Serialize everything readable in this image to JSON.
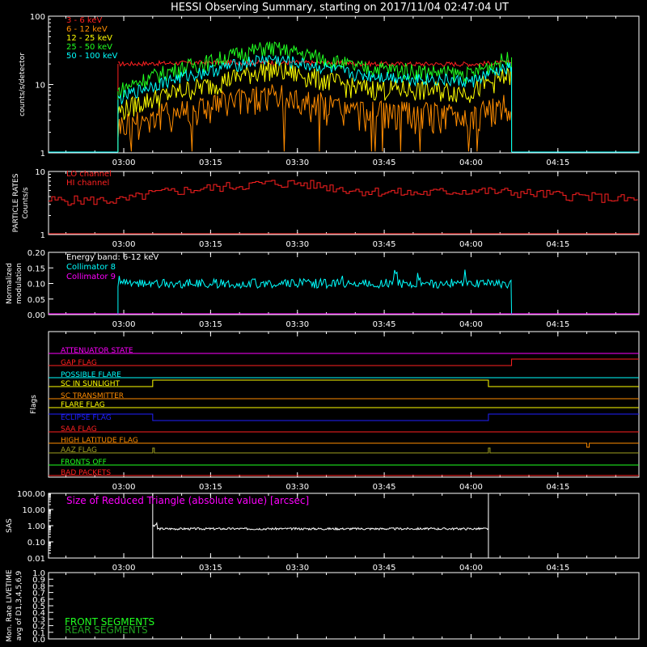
{
  "title": "HESSI Observing Summary, starting on 2017/11/04 02:47:04 UT",
  "time_ticks": [
    "03:00",
    "03:15",
    "03:30",
    "03:45",
    "04:00",
    "04:15"
  ],
  "colors": {
    "red": "#ff2020",
    "orange": "#ff8c00",
    "yellow": "#ffff00",
    "green": "#20ff20",
    "cyan": "#00ffff",
    "magenta": "#ff00ff",
    "white": "#ffffff",
    "blue": "#2020ff",
    "olive": "#a0a020",
    "dkgreen": "#20a020"
  },
  "chart_data": [
    {
      "type": "line",
      "id": "counts",
      "ylabel": "counts/s/detector",
      "ylim": [
        1,
        100
      ],
      "yscale": "log",
      "yticks": [
        "1",
        "10",
        "100"
      ],
      "data_window": [
        "02:59",
        "04:07"
      ],
      "series": [
        {
          "name": "3 - 6 keV",
          "color": "red",
          "time": [
            "02:59",
            "03:15",
            "03:30",
            "03:45",
            "04:00",
            "04:07"
          ],
          "values": [
            20,
            21,
            21,
            20,
            20,
            21
          ]
        },
        {
          "name": "6 - 12 keV",
          "color": "orange",
          "time": [
            "02:59",
            "03:15",
            "03:25",
            "03:40",
            "04:00",
            "04:07"
          ],
          "values": [
            2.5,
            5,
            7,
            4,
            3.5,
            5
          ]
        },
        {
          "name": "12 - 25 keV",
          "color": "yellow",
          "time": [
            "02:59",
            "03:15",
            "03:25",
            "03:40",
            "04:00",
            "04:07"
          ],
          "values": [
            4,
            10,
            17,
            9,
            8,
            14
          ]
        },
        {
          "name": "25 - 50 keV",
          "color": "green",
          "time": [
            "02:59",
            "03:15",
            "03:25",
            "03:40",
            "04:00",
            "04:07"
          ],
          "values": [
            8,
            22,
            35,
            18,
            14,
            25
          ]
        },
        {
          "name": "50 - 100 keV",
          "color": "cyan",
          "time": [
            "02:59",
            "03:15",
            "03:25",
            "03:40",
            "04:00",
            "04:07"
          ],
          "values": [
            6,
            16,
            24,
            14,
            11,
            18
          ]
        }
      ]
    },
    {
      "type": "line",
      "id": "particle",
      "ylabel": [
        "PARTICLE RATES",
        "Counts/s"
      ],
      "ylim": [
        1,
        10
      ],
      "yscale": "log",
      "yticks": [
        "1",
        "10"
      ],
      "series": [
        {
          "name": "LO channel",
          "color": "red",
          "time": [
            "02:47",
            "03:00",
            "03:05",
            "03:15",
            "03:25",
            "03:30",
            "03:40",
            "03:50",
            "04:00",
            "04:10",
            "04:20",
            "04:29"
          ],
          "values": [
            3.5,
            3.5,
            4.5,
            5.5,
            6.5,
            6.5,
            5,
            4.5,
            5,
            4.5,
            4,
            3.5
          ]
        },
        {
          "name": "HI channel",
          "color": "red",
          "time": [
            "02:47",
            "04:29"
          ],
          "values": [
            1,
            1
          ]
        }
      ]
    },
    {
      "type": "line",
      "id": "modulation",
      "ylabel": [
        "Normalized",
        "modulation"
      ],
      "ylim": [
        0.0,
        0.2
      ],
      "yticks": [
        "0.00",
        "0.05",
        "0.10",
        "0.15",
        "0.20"
      ],
      "annotation": "Energy band: 6-12 keV",
      "series": [
        {
          "name": "Collimator 8",
          "color": "cyan",
          "time": [
            "02:59",
            "04:07"
          ],
          "values": [
            0.1,
            0.1
          ]
        },
        {
          "name": "Collimator 9",
          "color": "magenta",
          "time": [
            "02:47",
            "04:29"
          ],
          "values": [
            0.0,
            0.0
          ]
        }
      ]
    },
    {
      "type": "line",
      "id": "flags",
      "ylabel": "Flags",
      "flags": [
        {
          "name": "ATTENUATOR STATE",
          "color": "magenta"
        },
        {
          "name": "GAP FLAG",
          "color": "red"
        },
        {
          "name": "POSSIBLE FLARE",
          "color": "cyan"
        },
        {
          "name": "SC IN SUNLIGHT",
          "color": "yellow"
        },
        {
          "name": "SC TRANSMITTER",
          "color": "orange"
        },
        {
          "name": "FLARE FLAG",
          "color": "yellow"
        },
        {
          "name": "ECLIPSE FLAG",
          "color": "blue"
        },
        {
          "name": "SAA FLAG",
          "color": "red"
        },
        {
          "name": "HIGH LATITUDE FLAG",
          "color": "orange"
        },
        {
          "name": "AAZ FLAG",
          "color": "olive"
        },
        {
          "name": "FRONTS OFF",
          "color": "green"
        },
        {
          "name": "BAD PACKETS",
          "color": "red"
        }
      ]
    },
    {
      "type": "line",
      "id": "sas",
      "ylabel": "SAS",
      "ylim": [
        0.01,
        100
      ],
      "yscale": "log",
      "yticks": [
        "0.01",
        "0.10",
        "1.00",
        "10.00",
        "100.00"
      ],
      "annotation": "Size of Reduced Triangle (absolute value) [arcsec]",
      "series": [
        {
          "name": "SAS",
          "color": "white",
          "time": [
            "03:05",
            "03:10",
            "03:30",
            "04:00",
            "04:03"
          ],
          "values": [
            0.7,
            0.65,
            0.62,
            0.65,
            0.7
          ]
        }
      ]
    },
    {
      "type": "line",
      "id": "livetime",
      "ylabel": [
        "Mon. Rate LIVETIME",
        "avg of D1,3,4,5,6,9"
      ],
      "ylim": [
        0.0,
        1.0
      ],
      "yticks": [
        "0.0",
        "0.1",
        "0.2",
        "0.3",
        "0.4",
        "0.5",
        "0.6",
        "0.7",
        "0.8",
        "0.9",
        "1.0"
      ],
      "series": [
        {
          "name": "FRONT SEGMENTS",
          "color": "green",
          "time": [],
          "values": []
        },
        {
          "name": "REAR SEGMENTS",
          "color": "dkgreen",
          "time": [],
          "values": []
        }
      ]
    }
  ]
}
